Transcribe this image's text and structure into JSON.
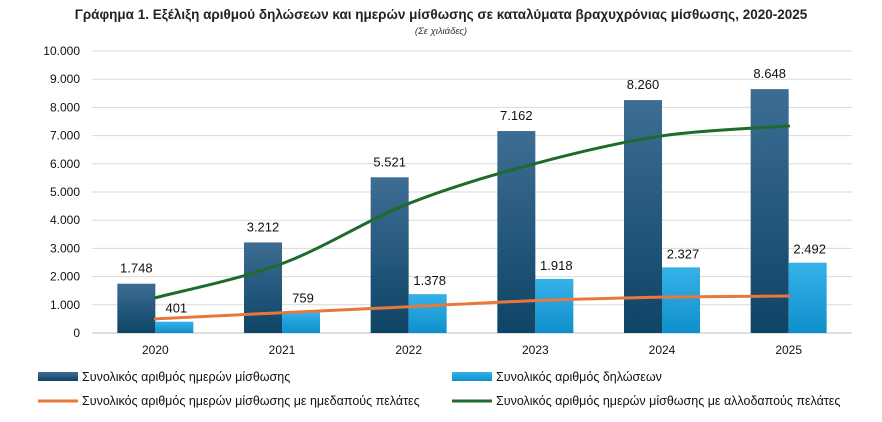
{
  "chart_data": {
    "type": "bar",
    "title": "Γράφημα 1. Εξέλιξη αριθμού δηλώσεων και ημερών μίσθωσης σε καταλύματα βραχυχρόνιας μίσθωσης, 2020-2025",
    "subtitle": "(Σε χιλιάδες)",
    "categories": [
      "2020",
      "2021",
      "2022",
      "2023",
      "2024",
      "2025"
    ],
    "ylim": [
      0,
      10000
    ],
    "yticks": [
      0,
      1000,
      2000,
      3000,
      4000,
      5000,
      6000,
      7000,
      8000,
      9000,
      10000
    ],
    "ytick_labels": [
      "0",
      "1.000",
      "2.000",
      "3.000",
      "4.000",
      "5.000",
      "6.000",
      "7.000",
      "8.000",
      "9.000",
      "10.000"
    ],
    "grid": true,
    "legend_position": "bottom",
    "series": [
      {
        "name": "Συνολικός αριθμός ημερών μίσθωσης",
        "type": "bar",
        "color": "#2a5f86",
        "values": [
          1748,
          3212,
          5521,
          7162,
          8260,
          8648
        ],
        "labels": [
          "1.748",
          "3.212",
          "5.521",
          "7.162",
          "8.260",
          "8.648"
        ]
      },
      {
        "name": "Συνολικός αριθμός δηλώσεων",
        "type": "bar",
        "color": "#1ba1dc",
        "values": [
          401,
          759,
          1378,
          1918,
          2327,
          2492
        ],
        "labels": [
          "401",
          "759",
          "1.378",
          "1.918",
          "2.327",
          "2.492"
        ]
      },
      {
        "name": "Συνολικός αριθμός ημερών μίσθωσης με ημεδαπούς πελάτες",
        "type": "line",
        "color": "#e8783a",
        "values": [
          500,
          720,
          930,
          1150,
          1270,
          1310
        ]
      },
      {
        "name": "Συνολικός αριθμός ημερών μίσθωσης με αλλοδαπούς πελάτες",
        "type": "line",
        "color": "#1e6b2c",
        "values": [
          1250,
          2460,
          4590,
          6010,
          6990,
          7340
        ]
      }
    ]
  }
}
